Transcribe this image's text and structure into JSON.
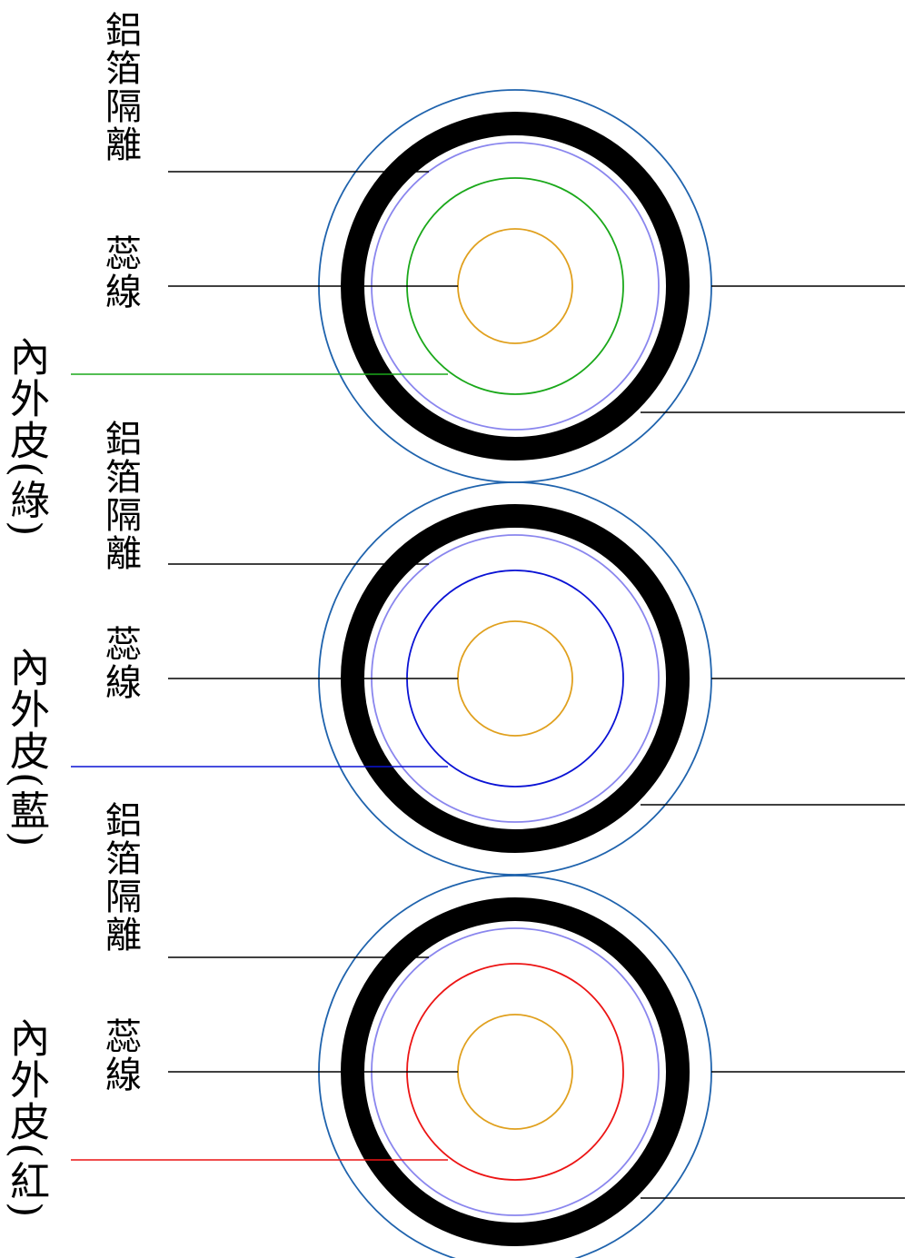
{
  "colors": {
    "outer_ring": "#1f63ad",
    "shield_band": "#000000",
    "shield_inner_ring": "#8a86ee",
    "conductor": "#e0a01e",
    "leader": "#000000"
  },
  "cables": [
    {
      "insulation_color": "#1aa81a",
      "labels": {
        "shield": "鋁箔隔離",
        "core": "蕊線",
        "jacket": "內外皮(綠)"
      }
    },
    {
      "insulation_color": "#0a12d4",
      "labels": {
        "shield": "鋁箔隔離",
        "core": "蕊線",
        "jacket": "內外皮(藍)"
      }
    },
    {
      "insulation_color": "#ec1414",
      "labels": {
        "shield": "鋁箔隔離",
        "core": "蕊線",
        "jacket": "內外皮(紅)"
      }
    }
  ]
}
